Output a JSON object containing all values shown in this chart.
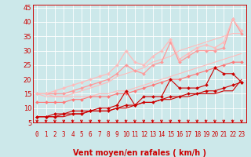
{
  "background_color": "#cce8ea",
  "grid_color": "#ffffff",
  "xlabel": "Vent moyen/en rafales ( km/h )",
  "xlabel_color": "#cc0000",
  "xlabel_fontsize": 7,
  "tick_color": "#cc0000",
  "xlim": [
    -0.5,
    23.5
  ],
  "ylim": [
    5,
    46
  ],
  "yticks": [
    5,
    10,
    15,
    20,
    25,
    30,
    35,
    40,
    45
  ],
  "xticks": [
    0,
    1,
    2,
    3,
    4,
    5,
    6,
    7,
    8,
    9,
    10,
    11,
    12,
    13,
    14,
    15,
    16,
    17,
    18,
    19,
    20,
    21,
    22,
    23
  ],
  "lines": [
    {
      "x": [
        0,
        1,
        2,
        3,
        4,
        5,
        6,
        7,
        8,
        9,
        10,
        11,
        12,
        13,
        14,
        15,
        16,
        17,
        18,
        19,
        20,
        21,
        22,
        23
      ],
      "y": [
        15,
        15,
        14,
        14,
        14,
        14,
        14,
        15,
        15,
        16,
        16,
        17,
        18,
        19,
        20,
        21,
        22,
        23,
        24,
        25,
        26,
        27,
        28,
        29
      ],
      "color": "#ffbbbb",
      "linewidth": 0.8,
      "marker": null,
      "zorder": 1
    },
    {
      "x": [
        0,
        1,
        2,
        3,
        4,
        5,
        6,
        7,
        8,
        9,
        10,
        11,
        12,
        13,
        14,
        15,
        16,
        17,
        18,
        19,
        20,
        21,
        22,
        23
      ],
      "y": [
        15,
        14,
        14,
        14,
        15,
        16,
        17,
        18,
        19,
        21,
        22,
        23,
        24,
        26,
        27,
        28,
        30,
        31,
        32,
        33,
        34,
        35,
        36,
        36
      ],
      "color": "#ffbbbb",
      "linewidth": 0.8,
      "marker": null,
      "zorder": 1
    },
    {
      "x": [
        0,
        1,
        2,
        3,
        4,
        5,
        6,
        7,
        8,
        9,
        10,
        11,
        12,
        13,
        14,
        15,
        16,
        17,
        18,
        19,
        20,
        21,
        22,
        23
      ],
      "y": [
        7,
        7,
        7,
        7,
        8,
        8,
        9,
        9,
        9,
        10,
        10,
        11,
        12,
        12,
        13,
        13,
        14,
        14,
        15,
        15,
        15,
        16,
        16,
        20
      ],
      "color": "#cc0000",
      "linewidth": 0.8,
      "marker": null,
      "zorder": 2
    },
    {
      "x": [
        0,
        1,
        2,
        3,
        4,
        5,
        6,
        7,
        8,
        9,
        10,
        11,
        12,
        13,
        14,
        15,
        16,
        17,
        18,
        19,
        20,
        21,
        22,
        23
      ],
      "y": [
        7,
        7,
        7,
        8,
        8,
        8,
        9,
        9,
        9,
        10,
        11,
        11,
        12,
        12,
        13,
        14,
        14,
        15,
        15,
        16,
        16,
        17,
        18,
        19
      ],
      "color": "#cc0000",
      "linewidth": 0.8,
      "marker": "D",
      "markersize": 2.0,
      "zorder": 3
    },
    {
      "x": [
        0,
        1,
        2,
        3,
        4,
        5,
        6,
        7,
        8,
        9,
        10,
        11,
        12,
        13,
        14,
        15,
        16,
        17,
        18,
        19,
        20,
        21,
        22,
        23
      ],
      "y": [
        7,
        7,
        8,
        8,
        9,
        9,
        9,
        10,
        10,
        11,
        16,
        11,
        14,
        14,
        14,
        20,
        17,
        17,
        17,
        18,
        24,
        22,
        22,
        19
      ],
      "color": "#cc0000",
      "linewidth": 0.8,
      "marker": "D",
      "markersize": 2.0,
      "zorder": 3
    },
    {
      "x": [
        0,
        1,
        2,
        3,
        4,
        5,
        6,
        7,
        8,
        9,
        10,
        11,
        12,
        13,
        14,
        15,
        16,
        17,
        18,
        19,
        20,
        21,
        22,
        23
      ],
      "y": [
        12,
        12,
        12,
        12,
        13,
        13,
        14,
        14,
        14,
        15,
        15,
        16,
        17,
        18,
        19,
        20,
        20,
        21,
        22,
        23,
        24,
        25,
        26,
        26
      ],
      "color": "#ff7777",
      "linewidth": 0.8,
      "marker": "D",
      "markersize": 2.0,
      "zorder": 2
    },
    {
      "x": [
        0,
        1,
        2,
        3,
        4,
        5,
        6,
        7,
        8,
        9,
        10,
        11,
        12,
        13,
        14,
        15,
        16,
        17,
        18,
        19,
        20,
        21,
        22,
        23
      ],
      "y": [
        15,
        15,
        15,
        15,
        16,
        17,
        18,
        19,
        20,
        22,
        25,
        23,
        22,
        25,
        26,
        33,
        26,
        28,
        30,
        30,
        30,
        31,
        41,
        36
      ],
      "color": "#ff9999",
      "linewidth": 0.9,
      "marker": "D",
      "markersize": 2.0,
      "zorder": 2
    },
    {
      "x": [
        0,
        1,
        2,
        3,
        4,
        5,
        6,
        7,
        8,
        9,
        10,
        11,
        12,
        13,
        14,
        15,
        16,
        17,
        18,
        19,
        20,
        21,
        22,
        23
      ],
      "y": [
        15,
        15,
        16,
        17,
        18,
        19,
        20,
        21,
        22,
        25,
        30,
        26,
        25,
        28,
        30,
        34,
        27,
        29,
        31,
        32,
        31,
        33,
        41,
        37
      ],
      "color": "#ffbbbb",
      "linewidth": 0.9,
      "marker": "D",
      "markersize": 2.0,
      "zorder": 2
    }
  ],
  "arrow_color": "#cc0000"
}
